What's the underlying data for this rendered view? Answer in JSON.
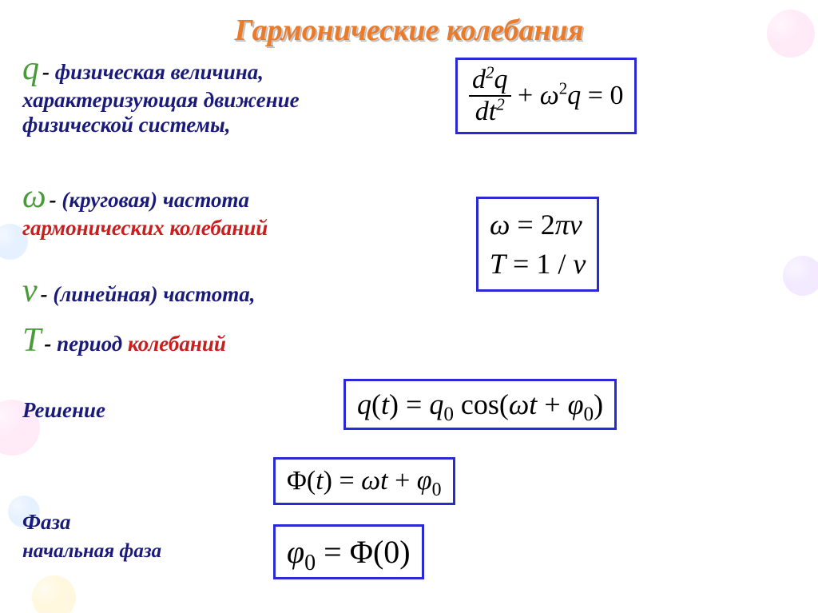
{
  "colors": {
    "title": "#e97b2a",
    "green": "#4a9a3a",
    "navy": "#1a1a7a",
    "red": "#c81e1e",
    "black": "#000000",
    "box_border": "#2a2ad4",
    "eq_text": "#000000",
    "bubble_pink": "#ffb0e6",
    "bubble_blue": "#a0c8ff",
    "bubble_yellow": "#ffe680",
    "bubble_lav": "#d0b0ff"
  },
  "sizes": {
    "title_fontsize": 38,
    "symbol_fontsize": 42,
    "text_fontsize": 27,
    "text_small_fontsize": 25,
    "eq_fontsize": 34,
    "eq_fontsize_big": 36
  },
  "title": "Гармонические колебания",
  "defs": {
    "q": {
      "symbol": "q",
      "dash": " - ",
      "line1a": "физическая величина,",
      "line2": "характеризующая движение",
      "line3": "физической системы,"
    },
    "omega": {
      "symbol": "ω",
      "dash": " - ",
      "line1a": "(круговая) частота",
      "line2": "гармонических колебаний"
    },
    "nu": {
      "symbol": "ν",
      "dash": " - ",
      "line1": "(линейная) частота,"
    },
    "T": {
      "symbol": "T",
      "dash": " - ",
      "line1a": "период ",
      "line1b": "колебаний"
    },
    "solution": "Решение",
    "phase": "Фаза",
    "init_phase": "начальная фаза"
  },
  "eqs": {
    "diff": {
      "num": "d<sup>2</sup>q",
      "den": "dt<sup>2</sup>",
      "rest": " + <i>ω</i><sup>2</sup><i>q</i> = 0"
    },
    "omega_nu": {
      "l1": "<i>ω</i> = 2<i>πν</i>",
      "l2": "<i>T</i> = 1 / <i>ν</i>"
    },
    "qt": "<i>q</i>(<i>t</i>) = <i>q</i><sub>0</sub> cos(<i>ωt</i> + <i>φ</i><sub>0</sub>)",
    "Phi": "Φ(<i>t</i>) = <i>ωt</i> + <i>φ</i><sub>0</sub>",
    "phi0": "<i>φ</i><sub>0</sub> = Φ(0)"
  }
}
